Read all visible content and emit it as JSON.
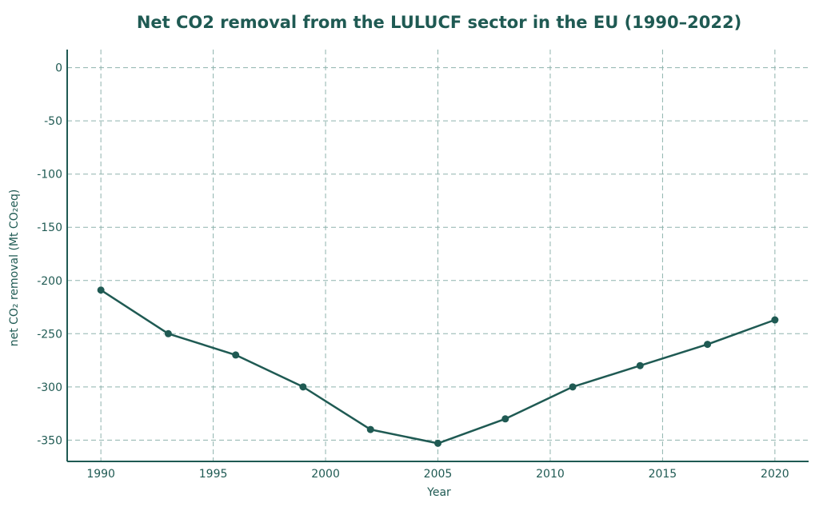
{
  "colors": {
    "line": "#1f5a53",
    "axis": "#1f5a53",
    "grid": "#8fb3ad",
    "text": "#1f5a53"
  },
  "chart_data": {
    "type": "line",
    "title": "Net CO2 removal from the LULUCF sector in the EU (1990–2022)",
    "xlabel": "Year",
    "ylabel": "net CO₂ removal (Mt CO₂eq)",
    "xlim": [
      1988.5,
      2021.5
    ],
    "ylim": [
      -370,
      17
    ],
    "x_ticks": [
      1990,
      1995,
      2000,
      2005,
      2010,
      2015,
      2020
    ],
    "y_ticks": [
      0,
      -50,
      -100,
      -150,
      -200,
      -250,
      -300,
      -350
    ],
    "grid": true,
    "legend": "none",
    "series": [
      {
        "x": [
          1990,
          1993,
          1996,
          1999,
          2002,
          2005,
          2008,
          2011,
          2014,
          2017,
          2020
        ],
        "y": [
          -209,
          -250,
          -270,
          -300,
          -340,
          -353,
          -330,
          -300,
          -280,
          -260,
          -237
        ]
      }
    ]
  }
}
